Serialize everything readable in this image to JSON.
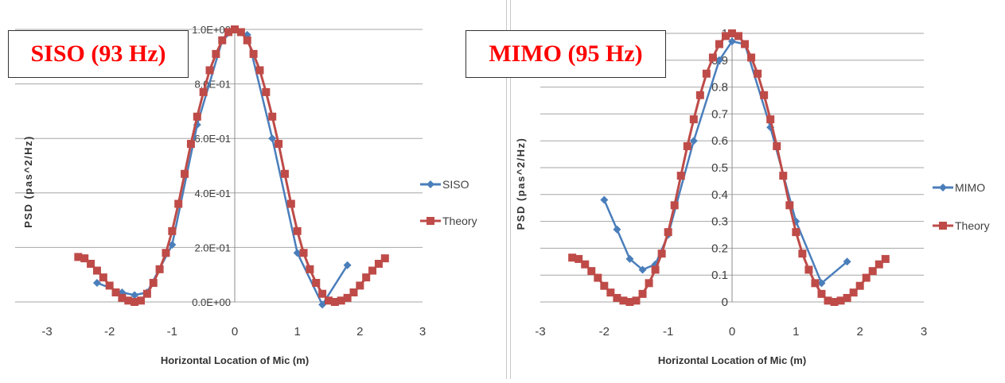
{
  "chart_data": [
    {
      "type": "line",
      "annotation": "SISO (93 Hz)",
      "xlabel": "Horizontal Location of Mic (m)",
      "ylabel": "PSD (pas^2/Hz)",
      "xlim": [
        -3,
        3
      ],
      "ylim": [
        0,
        1
      ],
      "xticks": [
        "-3",
        "-2",
        "-1",
        "0",
        "1",
        "2",
        "3"
      ],
      "yticks": [
        "0.0E+00",
        "2.0E-01",
        "4.0E-01",
        "6.0E-01",
        "8.0E-01",
        "1.0E+00"
      ],
      "grid": "horizontal",
      "legend": "right",
      "series": [
        {
          "name": "SISO",
          "color": "#4a7ebb",
          "marker": "diamond",
          "x": [
            -2.2,
            -1.8,
            -1.6,
            -1.4,
            -1.0,
            -0.6,
            -0.2,
            0.0,
            0.2,
            0.6,
            1.0,
            1.4,
            1.8
          ],
          "y": [
            0.07,
            0.035,
            0.025,
            0.035,
            0.21,
            0.65,
            0.96,
            1.0,
            0.98,
            0.6,
            0.18,
            -0.01,
            0.135
          ]
        },
        {
          "name": "Theory",
          "color": "#be4b48",
          "marker": "square",
          "x": [
            -2.5,
            -2.4,
            -2.3,
            -2.2,
            -2.1,
            -2.0,
            -1.9,
            -1.8,
            -1.7,
            -1.6,
            -1.5,
            -1.4,
            -1.3,
            -1.2,
            -1.1,
            -1.0,
            -0.9,
            -0.8,
            -0.7,
            -0.6,
            -0.5,
            -0.4,
            -0.3,
            -0.2,
            -0.1,
            0.0,
            0.1,
            0.2,
            0.3,
            0.4,
            0.5,
            0.6,
            0.7,
            0.8,
            0.9,
            1.0,
            1.1,
            1.2,
            1.3,
            1.4,
            1.5,
            1.6,
            1.7,
            1.8,
            1.9,
            2.0,
            2.1,
            2.2,
            2.3,
            2.4
          ],
          "y": [
            0.165,
            0.16,
            0.14,
            0.115,
            0.09,
            0.06,
            0.035,
            0.015,
            0.005,
            0.0,
            0.005,
            0.03,
            0.07,
            0.12,
            0.18,
            0.26,
            0.36,
            0.47,
            0.58,
            0.68,
            0.77,
            0.85,
            0.91,
            0.96,
            0.99,
            1.0,
            0.99,
            0.96,
            0.91,
            0.85,
            0.77,
            0.68,
            0.58,
            0.47,
            0.36,
            0.26,
            0.18,
            0.12,
            0.07,
            0.03,
            0.005,
            0.0,
            0.005,
            0.015,
            0.035,
            0.06,
            0.09,
            0.115,
            0.14,
            0.16
          ]
        }
      ]
    },
    {
      "type": "line",
      "annotation": "MIMO (95 Hz)",
      "xlabel": "Horizontal Location of Mic (m)",
      "ylabel": "PSD (pas^2/Hz)",
      "xlim": [
        -3,
        3
      ],
      "ylim": [
        0,
        1
      ],
      "xticks": [
        "-3",
        "-2",
        "-1",
        "0",
        "1",
        "2",
        "3"
      ],
      "yticks": [
        "0",
        "0.1",
        "0.2",
        "0.3",
        "0.4",
        "0.5",
        "0.6",
        "0.7",
        "0.8",
        "0.9",
        "1"
      ],
      "grid": "horizontal",
      "legend": "right",
      "series": [
        {
          "name": "MIMO",
          "color": "#4a7ebb",
          "marker": "diamond",
          "x": [
            -2.0,
            -1.8,
            -1.6,
            -1.4,
            -1.2,
            -1.0,
            -0.6,
            -0.2,
            0.0,
            0.2,
            0.6,
            1.0,
            1.4,
            1.8
          ],
          "y": [
            0.38,
            0.27,
            0.16,
            0.12,
            0.14,
            0.25,
            0.6,
            0.9,
            0.97,
            0.96,
            0.65,
            0.3,
            0.07,
            0.15
          ]
        },
        {
          "name": "Theory",
          "color": "#be4b48",
          "marker": "square",
          "x": [
            -2.5,
            -2.4,
            -2.3,
            -2.2,
            -2.1,
            -2.0,
            -1.9,
            -1.8,
            -1.7,
            -1.6,
            -1.5,
            -1.4,
            -1.3,
            -1.2,
            -1.1,
            -1.0,
            -0.9,
            -0.8,
            -0.7,
            -0.6,
            -0.5,
            -0.4,
            -0.3,
            -0.2,
            -0.1,
            0.0,
            0.1,
            0.2,
            0.3,
            0.4,
            0.5,
            0.6,
            0.7,
            0.8,
            0.9,
            1.0,
            1.1,
            1.2,
            1.3,
            1.4,
            1.5,
            1.6,
            1.7,
            1.8,
            1.9,
            2.0,
            2.1,
            2.2,
            2.3,
            2.4
          ],
          "y": [
            0.165,
            0.16,
            0.14,
            0.115,
            0.09,
            0.06,
            0.035,
            0.015,
            0.005,
            0.0,
            0.005,
            0.03,
            0.07,
            0.12,
            0.18,
            0.26,
            0.36,
            0.47,
            0.58,
            0.68,
            0.77,
            0.85,
            0.91,
            0.96,
            0.99,
            1.0,
            0.99,
            0.96,
            0.91,
            0.85,
            0.77,
            0.68,
            0.58,
            0.47,
            0.36,
            0.26,
            0.18,
            0.12,
            0.07,
            0.03,
            0.005,
            0.0,
            0.005,
            0.015,
            0.035,
            0.06,
            0.09,
            0.115,
            0.14,
            0.16
          ]
        }
      ]
    }
  ]
}
